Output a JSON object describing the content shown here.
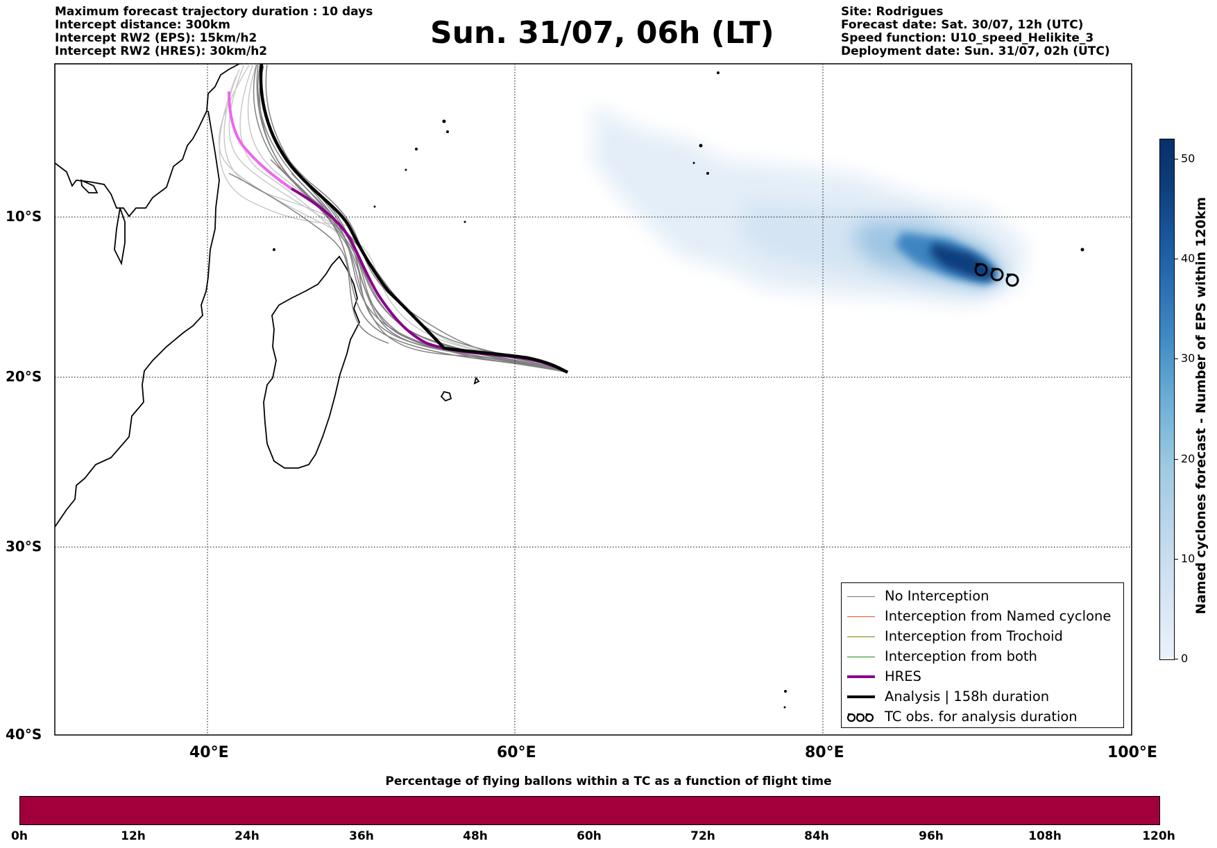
{
  "header_left": [
    "Maximum forecast trajectory duration : 10 days",
    "Intercept distance: 300km",
    "Intercept RW2 (EPS):  15km/h2",
    "Intercept RW2 (HRES): 30km/h2"
  ],
  "header_right": [
    "Site: Rodrigues",
    "Forecast date: Sat. 30/07, 12h (UTC)",
    "Speed function: U10_speed_Helikite_3",
    "Deployment date: Sun. 31/07, 02h (UTC)"
  ],
  "title": "Sun. 31/07, 06h (LT)",
  "map": {
    "lat_labels": [
      "10°S",
      "20°S",
      "30°S",
      "40°S"
    ],
    "lon_labels": [
      "40°E",
      "60°E",
      "80°E",
      "100°E"
    ],
    "lon_range": [
      30,
      100
    ],
    "lat_range": [
      -40,
      1
    ]
  },
  "legend": [
    {
      "label": "No Interception",
      "color": "#707070"
    },
    {
      "label": "Interception from Named cyclone",
      "color": "#e34a1f"
    },
    {
      "label": "Interception from Trochoid",
      "color": "#808000"
    },
    {
      "label": "Interception from both",
      "color": "#1a8a1a"
    },
    {
      "label": "HRES",
      "color": "#8b008b"
    },
    {
      "label": "Analysis | 158h duration",
      "color": "#000000"
    },
    {
      "label": "TC obs. for analysis duration",
      "icon": "cyclone-symbol-icon"
    }
  ],
  "colorbar": {
    "title": "Named cyclones forecast - Number of EPS within 120km",
    "ticks": [
      "0",
      "10",
      "20",
      "30",
      "40",
      "50"
    ],
    "range": [
      0,
      52
    ]
  },
  "flight_bar": {
    "title": "Percentage of flying ballons within a TC as a function of flight time",
    "ticks": [
      "0h",
      "12h",
      "24h",
      "36h",
      "48h",
      "60h",
      "72h",
      "84h",
      "96h",
      "108h",
      "120h"
    ],
    "color": "#a1003c"
  },
  "chart_data": {
    "type": "trajectory-map",
    "analysis_track": [
      [
        43.5,
        1
      ],
      [
        43.4,
        -2
      ],
      [
        44,
        -5
      ],
      [
        46,
        -7.5
      ],
      [
        48,
        -9.5
      ],
      [
        49.5,
        -11
      ],
      [
        51,
        -13
      ],
      [
        52.5,
        -15
      ],
      [
        54,
        -16.5
      ],
      [
        55.5,
        -18
      ],
      [
        57,
        -18.3
      ],
      [
        59,
        -18.5
      ],
      [
        61,
        -19
      ],
      [
        63.5,
        -19.6
      ]
    ],
    "hres_track": [
      [
        41.3,
        -1.5
      ],
      [
        41.5,
        -3.5
      ],
      [
        42.5,
        -5
      ],
      [
        44,
        -6.5
      ],
      [
        46,
        -8
      ],
      [
        48,
        -9.5
      ],
      [
        49.5,
        -11
      ],
      [
        50.5,
        -13
      ],
      [
        51.8,
        -15
      ],
      [
        53.5,
        -16.5
      ],
      [
        55.5,
        -17.8
      ],
      [
        57.5,
        -18.3
      ],
      [
        60,
        -18.6
      ],
      [
        63.5,
        -19.6
      ]
    ],
    "tc_obs": [
      [
        90.3,
        -12.8
      ],
      [
        91.3,
        -13.1
      ],
      [
        92.2,
        -13.4
      ]
    ]
  }
}
